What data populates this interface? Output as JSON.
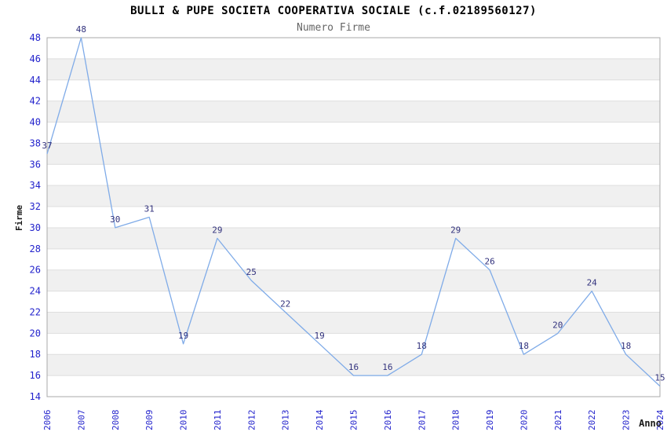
{
  "header": {
    "title": "BULLI & PUPE SOCIETA COOPERATIVA SOCIALE (c.f.02189560127)",
    "subtitle": "Numero Firme"
  },
  "chart_data": {
    "type": "line",
    "title": "BULLI & PUPE SOCIETA COOPERATIVA SOCIALE (c.f.02189560127)",
    "subtitle": "Numero Firme",
    "xlabel": "Anno",
    "ylabel": "Firme",
    "x": [
      2006,
      2007,
      2008,
      2009,
      2010,
      2011,
      2012,
      2013,
      2014,
      2015,
      2016,
      2017,
      2018,
      2019,
      2020,
      2021,
      2022,
      2023,
      2024
    ],
    "values": [
      37,
      48,
      30,
      31,
      19,
      29,
      25,
      22,
      19,
      16,
      16,
      18,
      29,
      26,
      18,
      20,
      24,
      18,
      15
    ],
    "ylim": [
      14,
      48
    ],
    "ytick_step": 2,
    "grid": true,
    "legend": "none",
    "point_labels_visible": true,
    "colors": {
      "line": "#7fabe8",
      "axis_tick_label": "#2222cc",
      "point_label": "#32327d",
      "band_fill": "#f0f0f0",
      "grid_line": "#dedede",
      "plot_border": "#a8a8a8",
      "title": "#000000",
      "subtitle": "#666666",
      "axis_title": "#1a1a1a"
    }
  }
}
